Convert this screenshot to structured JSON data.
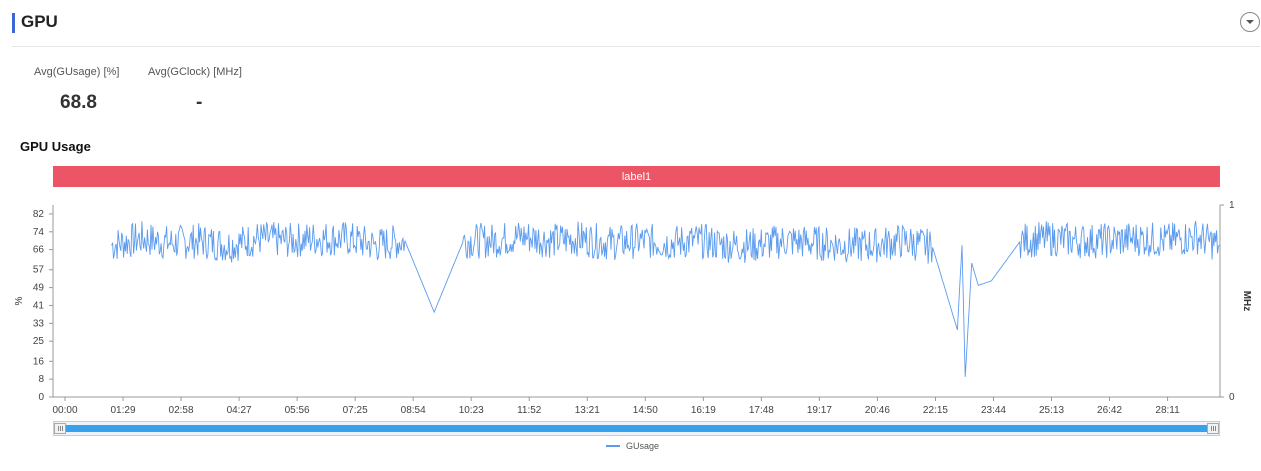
{
  "header": {
    "title": "GPU"
  },
  "stats": [
    {
      "label": "Avg(GUsage) [%]",
      "value": "68.8"
    },
    {
      "label": "Avg(GClock) [MHz]",
      "value": "-"
    }
  ],
  "section_title": "GPU Usage",
  "label_bar": "label1",
  "legend": {
    "series_name": "GUsage",
    "color": "#5b9bef"
  },
  "colors": {
    "accent": "#3a66d6",
    "label_bar": "#eb5565",
    "line": "#5b9bef",
    "slider": "#37a2eb"
  },
  "chart_data": {
    "type": "line",
    "title": "GPU Usage",
    "xlabel": "",
    "ylabel": "%",
    "y2label": "MHz",
    "x_range_seconds": [
      0,
      1791
    ],
    "x_ticks": [
      "00:00",
      "01:29",
      "02:58",
      "04:27",
      "05:56",
      "07:25",
      "08:54",
      "10:23",
      "11:52",
      "13:21",
      "14:50",
      "16:19",
      "17:48",
      "19:17",
      "20:46",
      "22:15",
      "23:44",
      "25:13",
      "26:42",
      "28:11"
    ],
    "y_ticks": [
      0,
      8,
      16,
      25,
      33,
      41,
      49,
      57,
      66,
      74,
      82
    ],
    "ylim": [
      0,
      86
    ],
    "y2_ticks": [
      0,
      1
    ],
    "y2lim": [
      0,
      1
    ],
    "grid": false,
    "legend_position": "bottom-center",
    "series": [
      {
        "name": "GUsage",
        "x_seconds": [
          90,
          135,
          180,
          225,
          270,
          315,
          360,
          405,
          450,
          495,
          540,
          585,
          630,
          675,
          720,
          765,
          810,
          855,
          900,
          945,
          990,
          1035,
          1080,
          1125,
          1170,
          1215,
          1260,
          1305,
          1350,
          1395,
          1388,
          1400,
          1410,
          1420,
          1440,
          1485,
          1530,
          1575,
          1620,
          1665,
          1710,
          1755,
          1790
        ],
        "values": [
          68,
          71,
          69,
          70,
          68,
          71,
          70,
          71,
          71,
          68,
          70,
          38,
          70,
          70,
          72,
          70,
          71,
          69,
          70,
          69,
          70,
          68,
          68,
          70,
          69,
          68,
          68,
          70,
          67,
          68,
          30,
          9,
          60,
          50,
          52,
          70,
          71,
          70,
          70,
          71,
          70,
          72,
          68
        ]
      }
    ]
  }
}
